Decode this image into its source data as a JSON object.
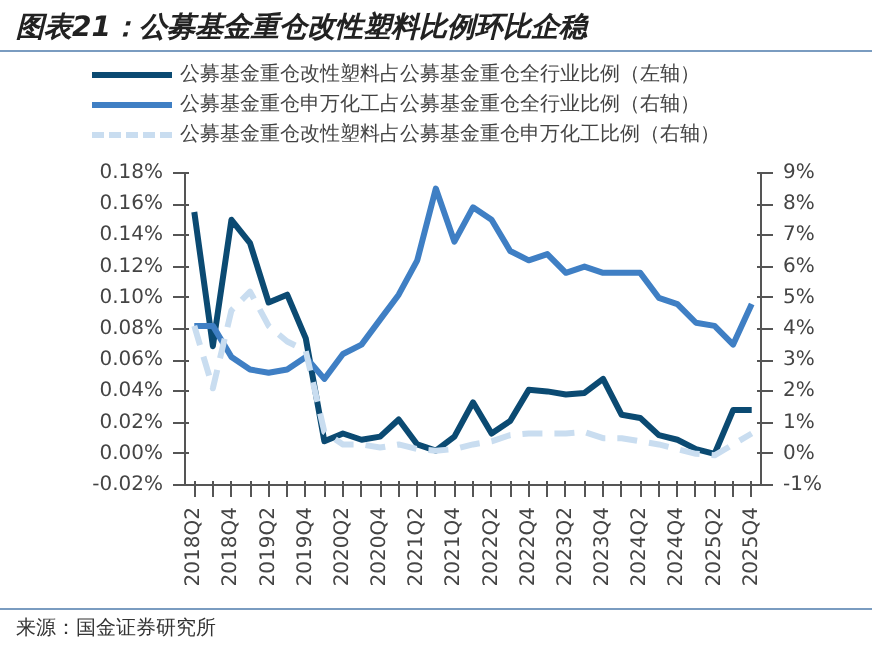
{
  "chart_data": {
    "type": "line",
    "title": "图表21：公募基金重仓改性塑料比例环比企稳",
    "categories": [
      "2018Q2",
      null,
      "2018Q4",
      null,
      "2019Q2",
      null,
      "2019Q4",
      null,
      "2020Q2",
      null,
      "2020Q4",
      null,
      "2021Q2",
      null,
      "2021Q4",
      null,
      "2022Q2",
      null,
      "2022Q4",
      null,
      "2023Q2",
      null,
      "2023Q4",
      null,
      "2024Q2",
      null,
      "2024Q4",
      null,
      "2025Q2",
      null,
      "2025Q4"
    ],
    "series": [
      {
        "name": "公募基金重仓改性塑料占公募基金重仓全行业比例（左轴）",
        "color": "#0b4a72",
        "values": [
          0.155,
          0.069,
          0.15,
          0.135,
          0.097,
          0.102,
          0.074,
          0.008,
          0.013,
          0.009,
          0.011,
          0.022,
          0.006,
          0.002,
          0.011,
          0.033,
          0.013,
          0.021,
          0.041,
          0.04,
          0.038,
          0.039,
          0.048,
          0.025,
          0.023,
          0.012,
          0.009,
          0.003,
          0.0,
          0.028,
          0.028
        ]
      },
      {
        "name": "公募基金重仓申万化工占公募基金重仓全行业比例（右轴）",
        "color": "#3f7fc4",
        "axis": "y2",
        "values": [
          4.1,
          4.1,
          3.1,
          2.7,
          2.6,
          2.7,
          3.1,
          2.4,
          3.2,
          3.5,
          4.3,
          5.1,
          6.2,
          8.5,
          6.8,
          7.9,
          7.5,
          6.5,
          6.2,
          6.4,
          5.8,
          6.0,
          5.8,
          5.8,
          5.8,
          5.0,
          4.8,
          4.2,
          4.1,
          3.5,
          4.8
        ]
      },
      {
        "name": "公募基金重仓改性塑料占公募基金重仓申万化工比例（右轴）",
        "color": "#c9ddf0",
        "axis": "y2",
        "line_style": "dashed",
        "values": [
          4.1,
          2.1,
          4.6,
          5.2,
          4.1,
          3.6,
          3.3,
          0.7,
          0.3,
          0.3,
          0.2,
          0.3,
          0.15,
          0.1,
          0.15,
          0.3,
          0.4,
          0.6,
          0.65,
          0.65,
          0.65,
          0.7,
          0.5,
          0.5,
          0.4,
          0.3,
          0.15,
          0.0,
          -0.05,
          0.3,
          0.65
        ]
      }
    ],
    "ylim": [
      -0.02,
      0.18
    ],
    "yticks": [
      {
        "value": -0.02,
        "label": "-0.02%"
      },
      {
        "value": 0,
        "label": "0.00%"
      },
      {
        "value": 0.02,
        "label": "0.02%"
      },
      {
        "value": 0.04,
        "label": "0.04%"
      },
      {
        "value": 0.06,
        "label": "0.06%"
      },
      {
        "value": 0.08,
        "label": "0.08%"
      },
      {
        "value": 0.1,
        "label": "0.10%"
      },
      {
        "value": 0.12,
        "label": "0.12%"
      },
      {
        "value": 0.14,
        "label": "0.14%"
      },
      {
        "value": 0.16,
        "label": "0.16%"
      },
      {
        "value": 0.18,
        "label": "0.18%"
      }
    ],
    "y2lim": [
      -1,
      9
    ],
    "y2ticks": [
      {
        "value": -1,
        "label": "-1%"
      },
      {
        "value": 0,
        "label": "0%"
      },
      {
        "value": 1,
        "label": "1%"
      },
      {
        "value": 2,
        "label": "2%"
      },
      {
        "value": 3,
        "label": "3%"
      },
      {
        "value": 4,
        "label": "4%"
      },
      {
        "value": 5,
        "label": "5%"
      },
      {
        "value": 6,
        "label": "6%"
      },
      {
        "value": 7,
        "label": "7%"
      },
      {
        "value": 8,
        "label": "8%"
      },
      {
        "value": 9,
        "label": "9%"
      }
    ],
    "grid": false,
    "legend": "top",
    "line_style": "solid",
    "annotations": [
      "来源：国金证券研究所"
    ]
  }
}
